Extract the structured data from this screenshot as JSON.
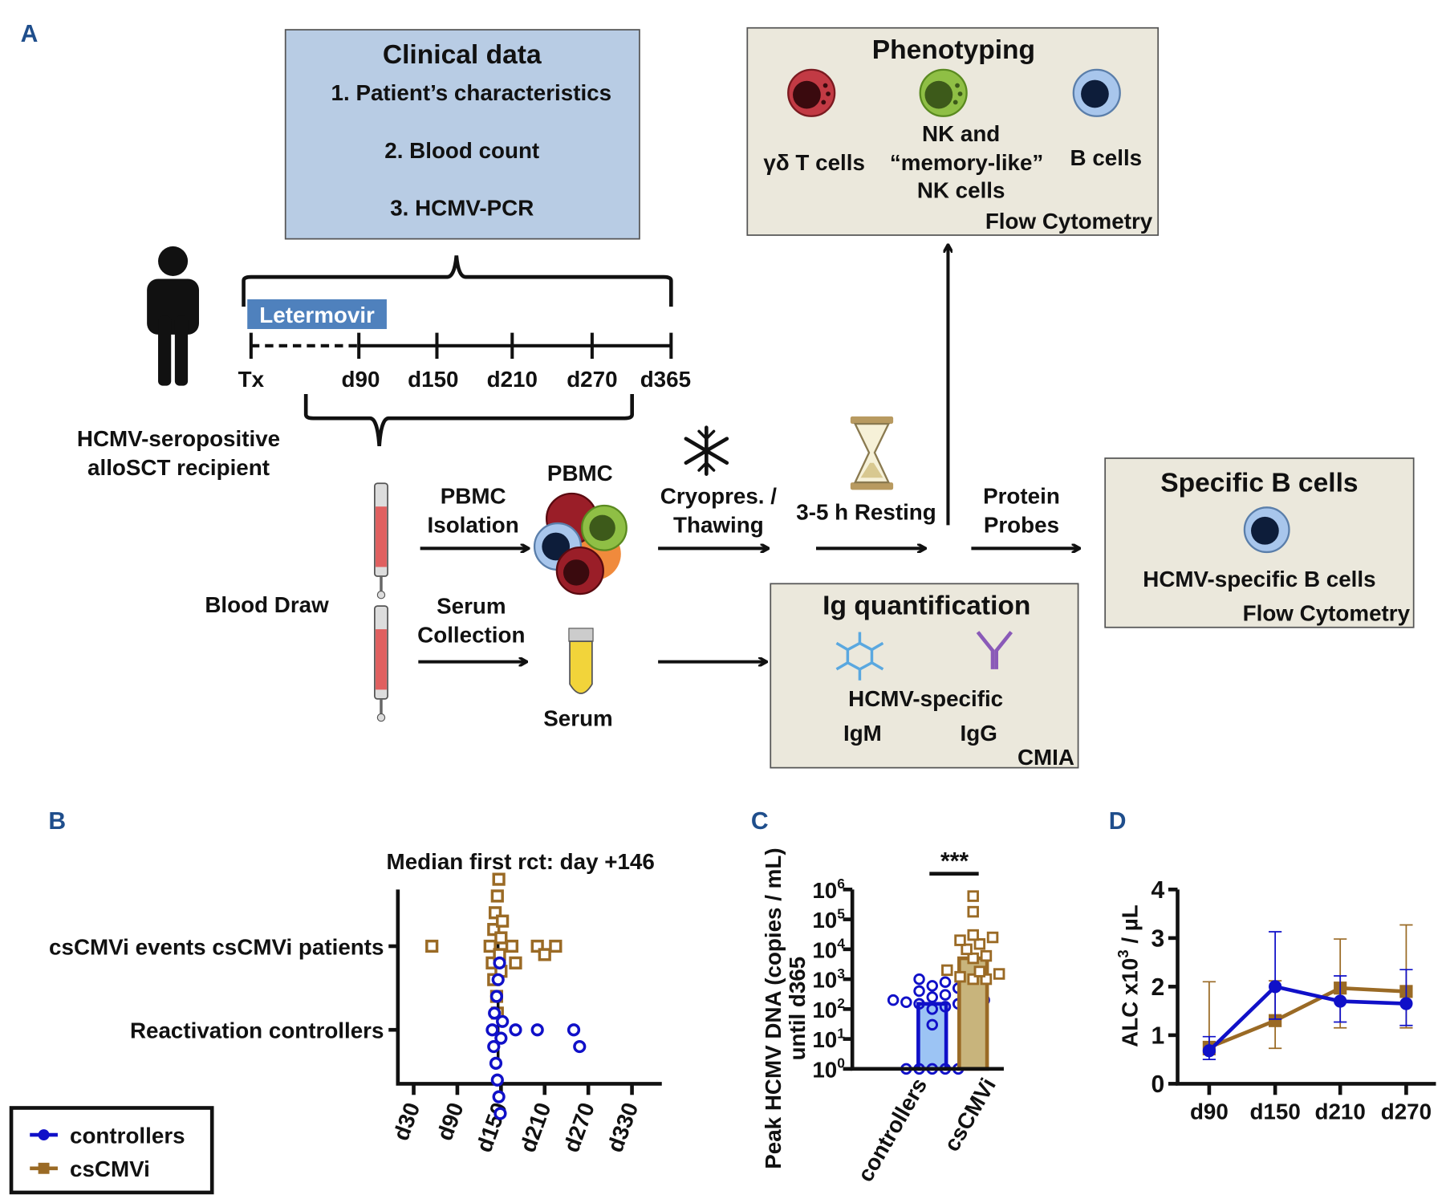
{
  "panel_labels": {
    "a": "A",
    "b": "B",
    "c": "C",
    "d": "D"
  },
  "clinical_data": {
    "title": "Clinical data",
    "items": [
      "1. Patient’s characteristics",
      "2. Blood count",
      "3. HCMV-PCR"
    ]
  },
  "phenotyping": {
    "title": "Phenotyping",
    "gd_t_cells": "γδ T cells",
    "nk_line1": "NK and",
    "nk_line2": "“memory-like”",
    "nk_line3": "NK cells",
    "b_cells": "B cells",
    "method": "Flow Cytometry"
  },
  "subject": {
    "line1": "HCMV-seropositive",
    "line2": "alloSCT recipient"
  },
  "timeline": {
    "drug": "Letermovir",
    "points": [
      "Tx",
      "d90",
      "d150",
      "d210",
      "d270",
      "d365"
    ]
  },
  "workflow": {
    "blood_draw": "Blood Draw",
    "pbmc_isolation_1": "PBMC",
    "pbmc_isolation_2": "Isolation",
    "pbmc": "PBMC",
    "serum_collection_1": "Serum",
    "serum_collection_2": "Collection",
    "serum": "Serum",
    "cryo_1": "Cryopres. /",
    "cryo_2": "Thawing",
    "resting": "3-5 h Resting",
    "probes_1": "Protein",
    "probes_2": "Probes"
  },
  "ig_quantification": {
    "title": "Ig quantification",
    "specific": "HCMV-specific",
    "igm": "IgM",
    "igg": "IgG",
    "method": "CMIA"
  },
  "specific_b_cells": {
    "title": "Specific B cells",
    "label": "HCMV-specific B cells",
    "method": "Flow Cytometry"
  },
  "colors": {
    "controllers": "#1010c8",
    "cscmvi": "#9a6a25",
    "clinical_box": "#b8cce4",
    "beige_box": "#ebe8dc",
    "letermovir": "#4f81bd",
    "panel_label": "#1f4e8c"
  },
  "legend": {
    "items": [
      "controllers",
      "csCMVi"
    ]
  },
  "chart_data": [
    {
      "id": "B",
      "type": "scatter",
      "title": "Median first rct: day +146",
      "categories": [
        "csCMVi events csCMVi patients",
        "Reactivation controllers"
      ],
      "x_ticks": [
        "d30",
        "d90",
        "d150",
        "d210",
        "d270",
        "d330"
      ],
      "x_tick_values": [
        30,
        90,
        150,
        210,
        270,
        330
      ],
      "xlim": [
        15,
        365
      ],
      "median": 146,
      "series": [
        {
          "name": "csCMVi",
          "values": [
            55,
            135,
            138,
            140,
            140,
            142,
            144,
            145,
            145,
            147,
            148,
            150,
            150,
            152,
            165,
            170,
            200,
            210,
            225
          ]
        },
        {
          "name": "controllers",
          "values": [
            138,
            140,
            141,
            143,
            144,
            145,
            146,
            147,
            148,
            149,
            150,
            152,
            170,
            200,
            250,
            258
          ]
        }
      ]
    },
    {
      "id": "C",
      "type": "bar",
      "ylabel_line1": "Peak HCMV DNA (copies / mL)",
      "ylabel_line2": "until d365",
      "categories": [
        "controllers",
        "csCMVi"
      ],
      "yscale": "log",
      "ylim": [
        1,
        1000000
      ],
      "y_tick_exponents": [
        0,
        1,
        2,
        3,
        4,
        5,
        6
      ],
      "significance": "***",
      "bar_values": [
        150,
        5000
      ],
      "points": [
        [
          1,
          1,
          1,
          1,
          1,
          30,
          100,
          120,
          150,
          150,
          170,
          180,
          200,
          200,
          250,
          300,
          400,
          500,
          600,
          800,
          1000
        ],
        [
          1000,
          1000,
          1200,
          1500,
          1800,
          2000,
          5000,
          6000,
          10000,
          15000,
          20000,
          25000,
          30000,
          180000,
          600000
        ]
      ]
    },
    {
      "id": "D",
      "type": "line",
      "ylabel": "ALC  x10",
      "ylabel_exp": "3",
      "ylabel_unit": " / µL",
      "categories": [
        "d90",
        "d150",
        "d210",
        "d270"
      ],
      "ylim": [
        0,
        4
      ],
      "y_ticks": [
        0,
        1,
        2,
        3,
        4
      ],
      "series": [
        {
          "name": "csCMVi",
          "values": [
            0.75,
            1.3,
            1.97,
            1.9
          ],
          "err_low": [
            0.6,
            0.73,
            1.15,
            1.15
          ],
          "err_high": [
            2.1,
            2.12,
            2.98,
            3.27
          ]
        },
        {
          "name": "controllers",
          "values": [
            0.68,
            2.0,
            1.7,
            1.65
          ],
          "err_low": [
            0.5,
            1.33,
            1.27,
            1.2
          ],
          "err_high": [
            0.97,
            3.13,
            2.22,
            2.35
          ]
        }
      ]
    }
  ]
}
